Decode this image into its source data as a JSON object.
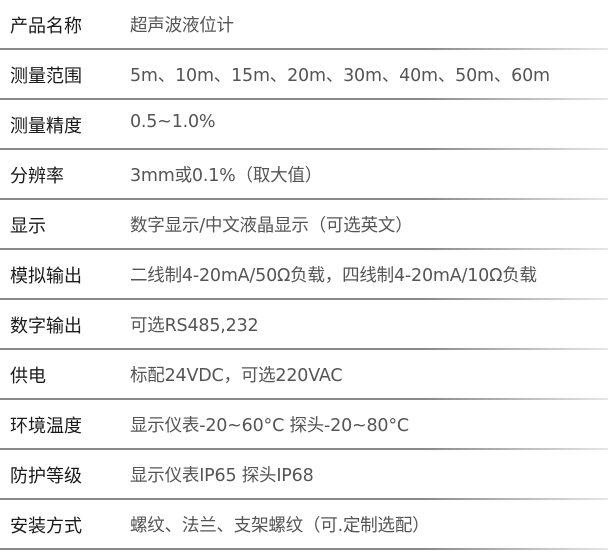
{
  "specs": [
    {
      "label": "产品名称",
      "value": "超声波液位计"
    },
    {
      "label": "测量范围",
      "value": "5m、10m、15m、20m、30m、40m、50m、60m"
    },
    {
      "label": "测量精度",
      "value": "0.5~1.0%"
    },
    {
      "label": "分辨率",
      "value": "3mm或0.1%（取大值）"
    },
    {
      "label": "显示",
      "value": "数字显示/中文液晶显示（可选英文）"
    },
    {
      "label": "模拟输出",
      "value": "二线制4-20mA/50Ω负载，四线制4-20mA/10Ω负载"
    },
    {
      "label": "数字输出",
      "value": "可选RS485,232"
    },
    {
      "label": "供电",
      "value": "标配24VDC，可选220VAC"
    },
    {
      "label": "环境温度",
      "value": "显示仪表-20~60°C  探头-20~80°C"
    },
    {
      "label": "防护等级",
      "value": "显示仪表IP65  探头IP68"
    },
    {
      "label": "安装方式",
      "value": "螺纹、法兰、支架螺纹（可.定制选配）"
    }
  ]
}
